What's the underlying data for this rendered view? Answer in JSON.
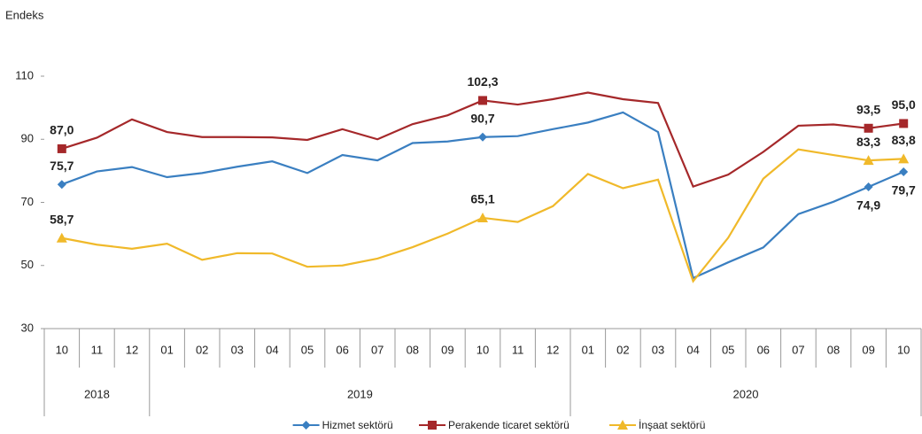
{
  "chart_data": {
    "type": "line",
    "y_axis_label": "Endeks",
    "categories": [
      "10",
      "11",
      "12",
      "01",
      "02",
      "03",
      "04",
      "05",
      "06",
      "07",
      "08",
      "09",
      "10",
      "11",
      "12",
      "01",
      "02",
      "03",
      "04",
      "05",
      "06",
      "07",
      "08",
      "09",
      "10"
    ],
    "year_groups": [
      {
        "label": "2018",
        "count": 3
      },
      {
        "label": "2019",
        "count": 12
      },
      {
        "label": "2020",
        "count": 10
      }
    ],
    "ylim": [
      30,
      110
    ],
    "yticks": [
      30,
      50,
      70,
      90,
      110
    ],
    "grid": false,
    "legend": "bottom",
    "series": [
      {
        "name": "Hizmet sektörü",
        "color": "#3a7fc1",
        "marker": "diamond",
        "values": [
          75.7,
          79.8,
          81.2,
          78.0,
          79.3,
          81.3,
          83.0,
          79.3,
          85.0,
          83.3,
          88.8,
          89.3,
          90.7,
          91.0,
          93.2,
          95.3,
          98.5,
          92.3,
          46.0,
          51.0,
          55.7,
          66.3,
          70.2,
          74.9,
          79.7
        ],
        "value_labels": [
          "75,7",
          null,
          null,
          null,
          null,
          null,
          null,
          null,
          null,
          null,
          null,
          null,
          "90,7",
          null,
          null,
          null,
          null,
          null,
          null,
          null,
          null,
          null,
          null,
          "74,9",
          "79,7"
        ]
      },
      {
        "name": "Perakende ticaret sektörü",
        "color": "#a5282a",
        "marker": "square",
        "values": [
          87.0,
          90.5,
          96.3,
          92.3,
          90.7,
          90.7,
          90.6,
          89.8,
          93.2,
          90.0,
          94.8,
          97.6,
          102.3,
          101.0,
          102.7,
          104.8,
          102.7,
          101.5,
          75.0,
          78.8,
          86.0,
          94.3,
          94.7,
          93.5,
          95.0
        ],
        "value_labels": [
          "87,0",
          null,
          null,
          null,
          null,
          null,
          null,
          null,
          null,
          null,
          null,
          null,
          "102,3",
          null,
          null,
          null,
          null,
          null,
          null,
          null,
          null,
          null,
          null,
          "93,5",
          "95,0"
        ]
      },
      {
        "name": "İnşaat sektörü",
        "color": "#f0b92a",
        "marker": "triangle",
        "values": [
          58.7,
          56.6,
          55.3,
          56.9,
          51.8,
          53.9,
          53.8,
          49.6,
          50.0,
          52.2,
          55.8,
          60.1,
          65.1,
          63.8,
          68.8,
          79.0,
          74.5,
          77.2,
          45.0,
          58.8,
          77.5,
          86.8,
          85.0,
          83.3,
          83.8
        ],
        "value_labels": [
          "58,7",
          null,
          null,
          null,
          null,
          null,
          null,
          null,
          null,
          null,
          null,
          null,
          "65,1",
          null,
          null,
          null,
          null,
          null,
          null,
          null,
          null,
          null,
          null,
          "83,3",
          "83,8"
        ]
      }
    ]
  }
}
